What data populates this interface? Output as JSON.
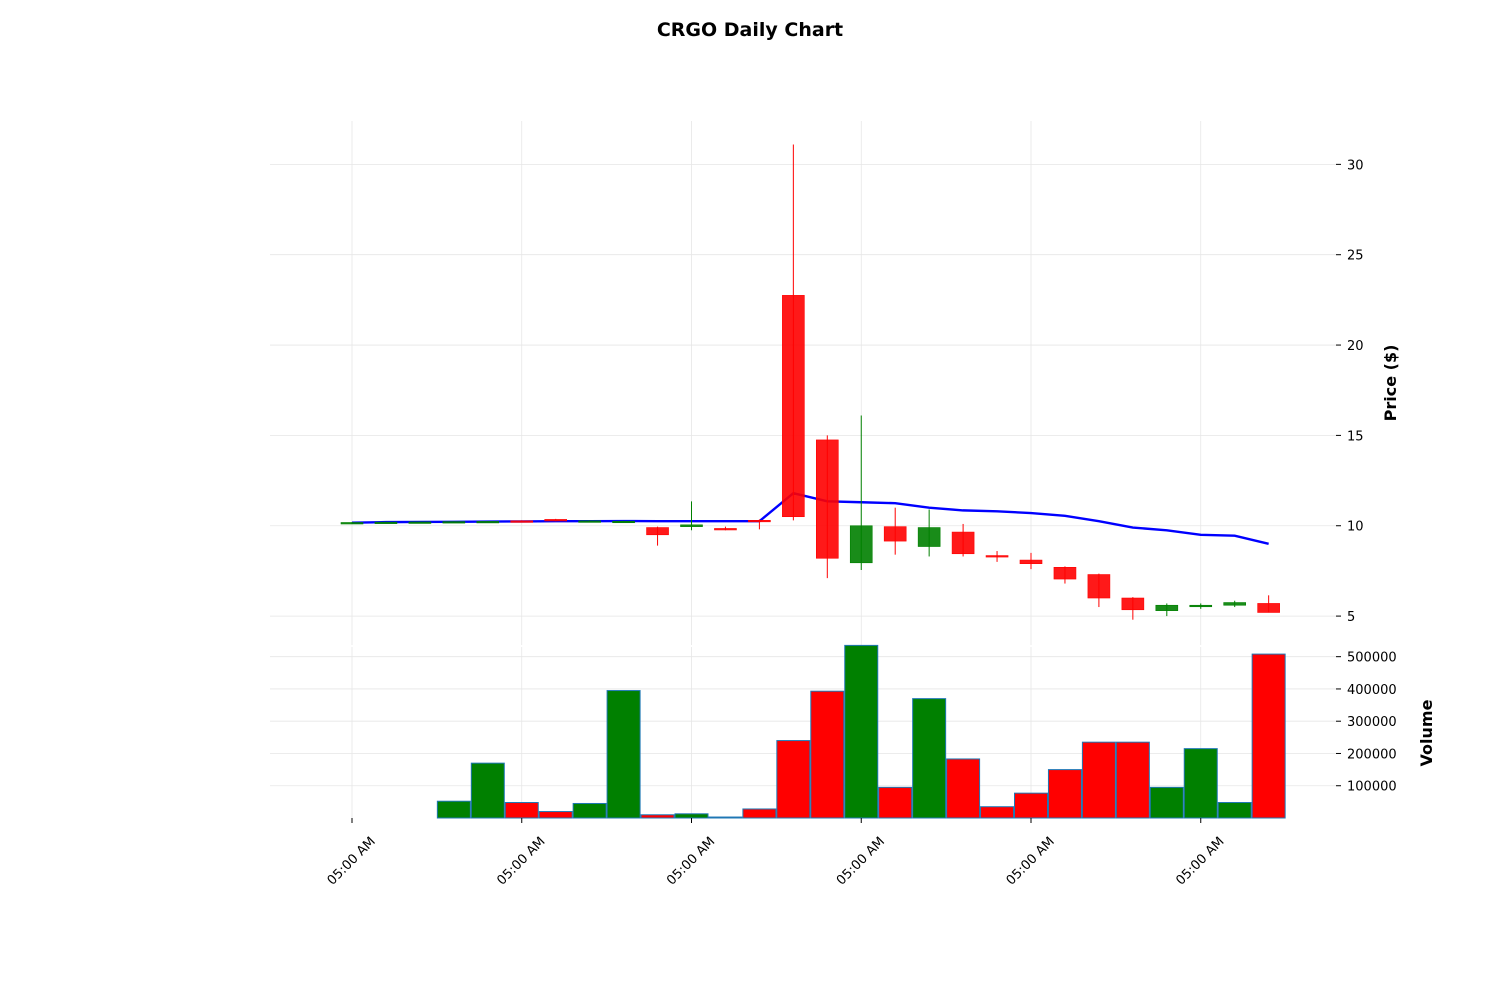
{
  "chart_data": {
    "type": "candlestick",
    "title": "CRGO Daily Chart",
    "ylabel": "Price ($)",
    "volume_label": "Volume",
    "ylim": [
      3.4,
      32.4
    ],
    "volume_ylim": [
      0,
      530000
    ],
    "grid": true,
    "y_ticks": [
      5,
      10,
      15,
      20,
      25,
      30
    ],
    "volume_ticks": [
      100000,
      200000,
      300000,
      400000,
      500000
    ],
    "volume_tick_labels": [
      "100000",
      "200000",
      "300000",
      "400000",
      "500000"
    ],
    "x_tick_labels": [
      "05:00 AM",
      "05:00 AM",
      "05:00 AM",
      "05:00 AM",
      "05:00 AM",
      "05:00 AM"
    ],
    "x_tick_index": [
      0,
      5,
      10,
      15,
      20,
      25
    ],
    "colors": {
      "up": "#008000",
      "down": "#ff0000",
      "moving_average": "#0000ff",
      "volume_edge": "#1f77b4",
      "grid": "#e6e6e6"
    },
    "candles": [
      {
        "open": 10.15,
        "high": 10.2,
        "low": 10.1,
        "close": 10.18,
        "volume": 0
      },
      {
        "open": 10.2,
        "high": 10.22,
        "low": 10.18,
        "close": 10.2,
        "volume": 0
      },
      {
        "open": 10.2,
        "high": 10.22,
        "low": 10.18,
        "close": 10.21,
        "volume": 0
      },
      {
        "open": 10.21,
        "high": 10.24,
        "low": 10.19,
        "close": 10.23,
        "volume": 52000
      },
      {
        "open": 10.22,
        "high": 10.25,
        "low": 10.2,
        "close": 10.24,
        "volume": 170000
      },
      {
        "open": 10.27,
        "high": 10.3,
        "low": 10.22,
        "close": 10.24,
        "volume": 48000
      },
      {
        "open": 10.35,
        "high": 10.38,
        "low": 10.25,
        "close": 10.28,
        "volume": 20000
      },
      {
        "open": 10.25,
        "high": 10.3,
        "low": 10.22,
        "close": 10.27,
        "volume": 45000
      },
      {
        "open": 10.22,
        "high": 10.27,
        "low": 10.2,
        "close": 10.25,
        "volume": 395000
      },
      {
        "open": 9.9,
        "high": 9.95,
        "low": 8.9,
        "close": 9.5,
        "volume": 10000
      },
      {
        "open": 9.95,
        "high": 11.35,
        "low": 9.75,
        "close": 10.05,
        "volume": 13000
      },
      {
        "open": 9.85,
        "high": 9.95,
        "low": 9.75,
        "close": 9.8,
        "volume": 3000
      },
      {
        "open": 10.3,
        "high": 10.35,
        "low": 9.8,
        "close": 10.25,
        "volume": 28000
      },
      {
        "open": 22.75,
        "high": 31.1,
        "low": 10.3,
        "close": 10.5,
        "volume": 240000
      },
      {
        "open": 14.75,
        "high": 15.0,
        "low": 7.1,
        "close": 8.2,
        "volume": 393000
      },
      {
        "open": 7.95,
        "high": 16.1,
        "low": 7.55,
        "close": 10.0,
        "volume": 535000
      },
      {
        "open": 9.95,
        "high": 11.0,
        "low": 8.4,
        "close": 9.15,
        "volume": 95000
      },
      {
        "open": 8.85,
        "high": 10.9,
        "low": 8.3,
        "close": 9.9,
        "volume": 370000
      },
      {
        "open": 9.65,
        "high": 10.1,
        "low": 8.3,
        "close": 8.45,
        "volume": 183000
      },
      {
        "open": 8.35,
        "high": 8.6,
        "low": 8.0,
        "close": 8.3,
        "volume": 35000
      },
      {
        "open": 8.1,
        "high": 8.5,
        "low": 7.6,
        "close": 7.9,
        "volume": 77000
      },
      {
        "open": 7.7,
        "high": 7.75,
        "low": 6.8,
        "close": 7.05,
        "volume": 150000
      },
      {
        "open": 7.3,
        "high": 7.35,
        "low": 5.5,
        "close": 6.0,
        "volume": 235000
      },
      {
        "open": 6.0,
        "high": 6.05,
        "low": 4.8,
        "close": 5.35,
        "volume": 235000
      },
      {
        "open": 5.3,
        "high": 5.7,
        "low": 5.0,
        "close": 5.6,
        "volume": 95000
      },
      {
        "open": 5.55,
        "high": 5.7,
        "low": 5.4,
        "close": 5.6,
        "volume": 215000
      },
      {
        "open": 5.6,
        "high": 5.85,
        "low": 5.5,
        "close": 5.75,
        "volume": 48000
      },
      {
        "open": 5.7,
        "high": 6.15,
        "low": 5.2,
        "close": 5.2,
        "volume": 508000
      }
    ],
    "moving_average": [
      10.17,
      10.2,
      10.21,
      10.22,
      10.23,
      10.24,
      10.25,
      10.25,
      10.26,
      10.25,
      10.25,
      10.25,
      10.25,
      11.8,
      11.35,
      11.3,
      11.25,
      11.0,
      10.85,
      10.8,
      10.7,
      10.55,
      10.25,
      9.9,
      9.75,
      9.5,
      9.45,
      9.0
    ]
  }
}
